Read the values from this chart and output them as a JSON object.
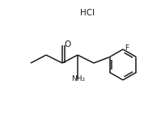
{
  "background_color": "#ffffff",
  "line_color": "#1a1a1a",
  "line_width": 1.1,
  "font_size_label": 6.5,
  "font_size_hcl": 7.5,
  "hcl_text": "HCl",
  "nh2_text": "NH₂",
  "o_text": "O",
  "f_text": "F",
  "figsize": [
    2.04,
    1.41
  ],
  "dpi": 100
}
